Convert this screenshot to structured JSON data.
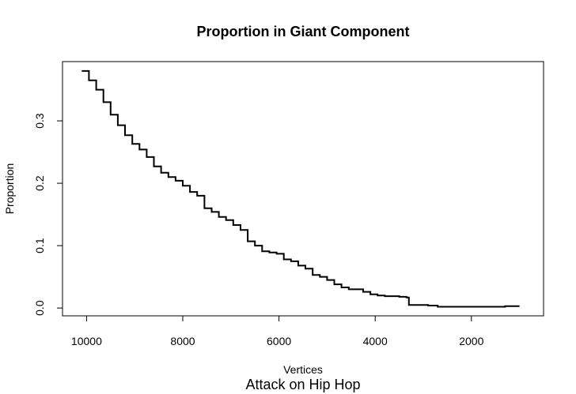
{
  "chart_data": {
    "type": "line",
    "title": "Proportion in Giant Component",
    "xlabel": "Vertices",
    "ylabel": "Proportion",
    "subtitle": "Attack on Hip Hop",
    "x_reversed": true,
    "xlim": [
      10500,
      500
    ],
    "ylim": [
      -0.0125,
      0.395
    ],
    "x_ticks": [
      10000,
      8000,
      6000,
      4000,
      2000
    ],
    "x_tick_labels": [
      "10000",
      "8000",
      "6000",
      "4000",
      "2000"
    ],
    "y_ticks": [
      0.0,
      0.1,
      0.2,
      0.3
    ],
    "y_tick_labels": [
      "0.0",
      "0.1",
      "0.2",
      "0.3"
    ],
    "grid": false,
    "series": [
      {
        "color": "#000000",
        "x": [
          10100,
          9950,
          9800,
          9650,
          9500,
          9350,
          9200,
          9050,
          8900,
          8750,
          8600,
          8450,
          8300,
          8150,
          8000,
          7850,
          7700,
          7550,
          7400,
          7250,
          7100,
          6950,
          6800,
          6650,
          6500,
          6350,
          6200,
          6050,
          5900,
          5750,
          5600,
          5450,
          5300,
          5150,
          5000,
          4850,
          4700,
          4550,
          4400,
          4250,
          4100,
          3950,
          3800,
          3650,
          3500,
          3350,
          3300,
          3150,
          2900,
          2700,
          2400,
          2000,
          1700,
          1300,
          1000
        ],
        "y": [
          0.38,
          0.365,
          0.35,
          0.33,
          0.31,
          0.293,
          0.277,
          0.263,
          0.254,
          0.242,
          0.227,
          0.217,
          0.21,
          0.204,
          0.196,
          0.186,
          0.18,
          0.16,
          0.154,
          0.146,
          0.141,
          0.133,
          0.125,
          0.107,
          0.1,
          0.091,
          0.089,
          0.087,
          0.078,
          0.075,
          0.068,
          0.063,
          0.053,
          0.05,
          0.045,
          0.038,
          0.033,
          0.03,
          0.03,
          0.026,
          0.022,
          0.02,
          0.019,
          0.019,
          0.018,
          0.017,
          0.005,
          0.005,
          0.004,
          0.002,
          0.002,
          0.002,
          0.002,
          0.003,
          0.003
        ]
      }
    ]
  }
}
